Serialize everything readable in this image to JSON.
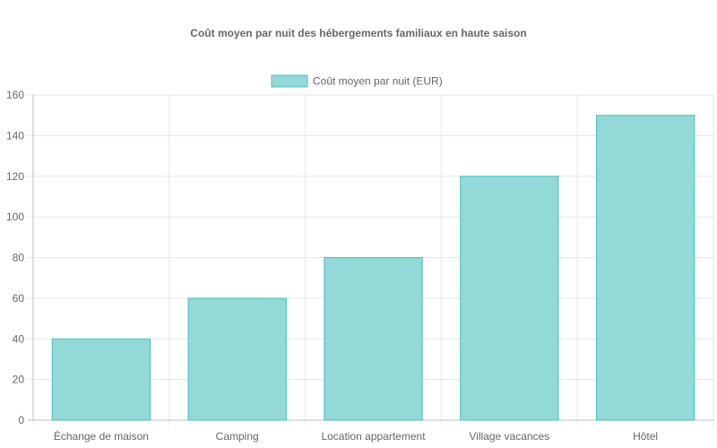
{
  "chart_data": {
    "type": "bar",
    "title": "Coût moyen par nuit des hébergements familiaux en haute saison",
    "categories": [
      "Échange de maison",
      "Camping",
      "Location appartement",
      "Village vacances",
      "Hôtel"
    ],
    "series": [
      {
        "name": "Coût moyen par nuit (EUR)",
        "values": [
          40,
          60,
          80,
          120,
          150
        ]
      }
    ],
    "ylim": [
      0,
      160
    ],
    "ytick_step": 20,
    "grid": true,
    "legend_position": "top",
    "colors": {
      "bar_fill": "#92d9d7",
      "bar_stroke": "#4bbfbc",
      "grid": "#e5e5e5",
      "axis": "#bdbdbd",
      "text": "#666666"
    }
  }
}
